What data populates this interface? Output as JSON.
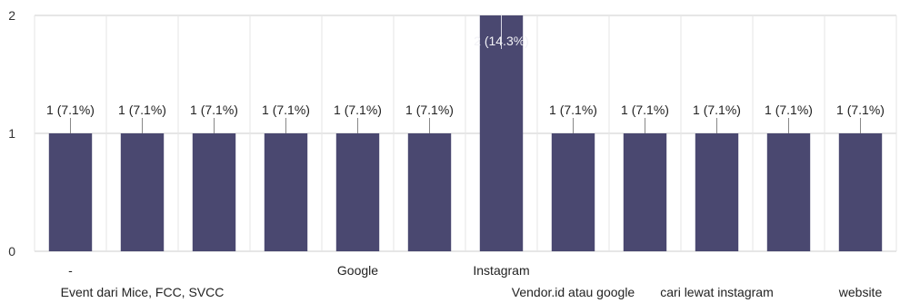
{
  "chart_data": {
    "type": "bar",
    "categories": [
      "-",
      "Event dari Mice, FCC, SVCC",
      "",
      "",
      "Google",
      "",
      "Instagram",
      "Vendor.id atau google",
      "",
      "cari lewat instagram",
      "",
      "website"
    ],
    "values": [
      1,
      1,
      1,
      1,
      1,
      1,
      2,
      1,
      1,
      1,
      1,
      1
    ],
    "data_labels": [
      "1 (7.1%)",
      "1 (7.1%)",
      "1 (7.1%)",
      "1 (7.1%)",
      "1 (7.1%)",
      "1 (7.1%)",
      "2 (14.3%)",
      "1 (7.1%)",
      "1 (7.1%)",
      "1 (7.1%)",
      "1 (7.1%)",
      "1 (7.1%)"
    ],
    "yticks": [
      "0",
      "1",
      "2"
    ],
    "ylim": [
      0,
      2
    ],
    "grid": true,
    "bar_color": "#4a4870"
  }
}
